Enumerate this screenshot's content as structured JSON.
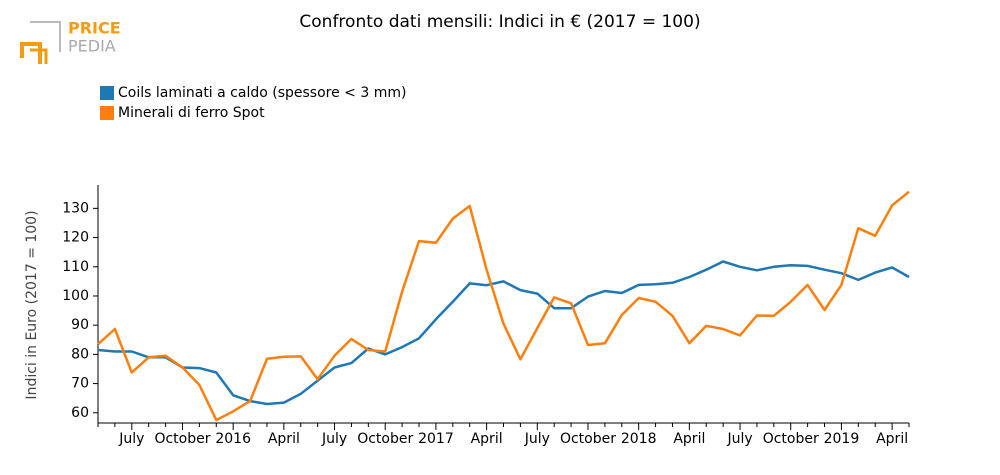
{
  "logo": {
    "line1": "PRICE",
    "line2": "PEDIA"
  },
  "chart_data": {
    "type": "line",
    "title": "Confronto dati mensili: Indici in € (2017 = 100)",
    "ylabel": "Indici in Euro (2017 = 100)",
    "categories": [
      null,
      null,
      "July",
      null,
      null,
      "October",
      null,
      null,
      "2016",
      null,
      null,
      "April",
      null,
      null,
      "July",
      null,
      null,
      "October",
      null,
      null,
      "2017",
      null,
      null,
      "April",
      null,
      null,
      "July",
      null,
      null,
      "October",
      null,
      null,
      "2018",
      null,
      null,
      "April",
      null,
      null,
      "July",
      null,
      null,
      "October",
      null,
      null,
      "2019",
      null,
      null,
      "April",
      null
    ],
    "series": [
      {
        "name": "Coils laminati a caldo (spessore < 3 mm)",
        "color": "#1f77b4",
        "values": [
          81.5,
          81,
          81,
          79,
          79,
          75.5,
          75.3,
          73.8,
          66,
          64,
          63,
          63.5,
          66.5,
          71,
          75.5,
          77,
          82,
          80,
          82.5,
          85.5,
          92,
          98,
          104.3,
          103.7,
          105,
          102,
          100.8,
          95.8,
          95.8,
          99.8,
          101.7,
          101,
          103.8,
          104,
          104.5,
          106.5,
          109,
          111.8,
          110,
          108.8,
          110,
          110.5,
          110.3,
          109,
          107.8,
          105.5,
          108,
          109.8,
          106.5
        ]
      },
      {
        "name": "Minerali di ferro Spot",
        "color": "#ff7f0e",
        "values": [
          83.5,
          88.7,
          73.8,
          79,
          79.5,
          75.5,
          69.5,
          57.5,
          60.5,
          64,
          78.5,
          79.2,
          79.3,
          71.5,
          79.5,
          85.3,
          81.5,
          81,
          101.5,
          118.8,
          118.2,
          126.5,
          130.8,
          109,
          90.5,
          78.3,
          89,
          99.5,
          97.5,
          83.2,
          83.8,
          93.5,
          99.3,
          98,
          93.2,
          83.8,
          89.8,
          88.7,
          86.5,
          93.3,
          93.2,
          98,
          103.8,
          95.2,
          103.8,
          123.2,
          120.6,
          131,
          135.7
        ]
      }
    ],
    "ylim": [
      56.5,
      138
    ],
    "yticks": [
      60,
      70,
      80,
      90,
      100,
      110,
      120,
      130
    ]
  }
}
